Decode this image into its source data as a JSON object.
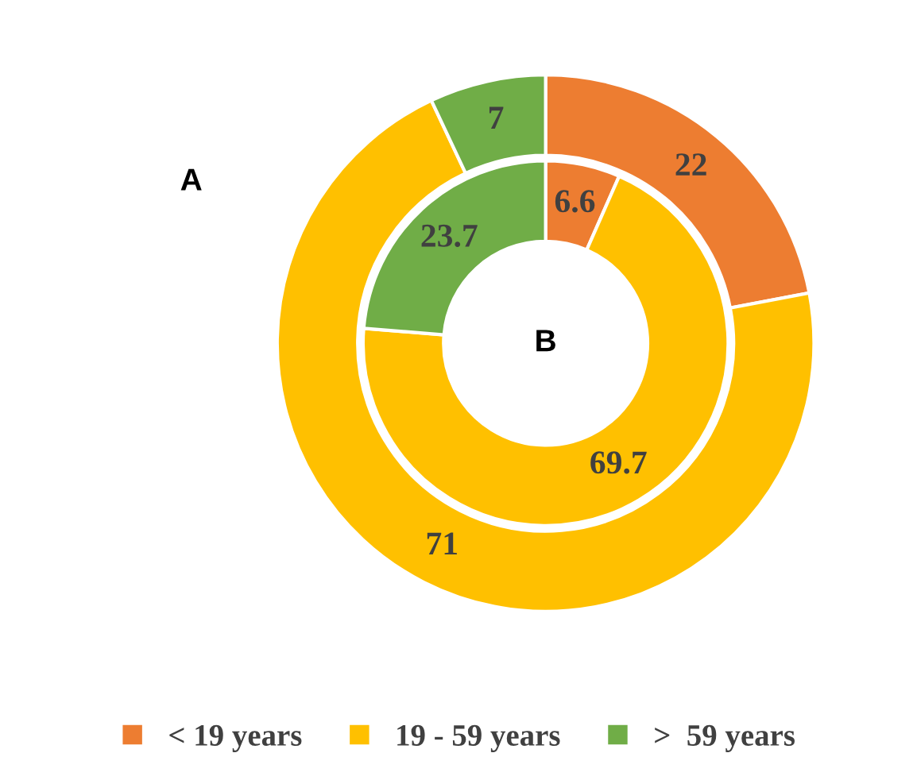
{
  "chart_data": {
    "type": "donut",
    "categories": [
      "< 19 years",
      "19 - 59 years",
      ">  59 years"
    ],
    "colors": [
      "#ed7d31",
      "#ffc000",
      "#70ad47"
    ],
    "series": [
      {
        "name": "A",
        "values": [
          22,
          71,
          7
        ]
      },
      {
        "name": "B",
        "values": [
          6.6,
          69.7,
          23.7
        ]
      }
    ],
    "data_labels": true,
    "legend": "bottom"
  }
}
